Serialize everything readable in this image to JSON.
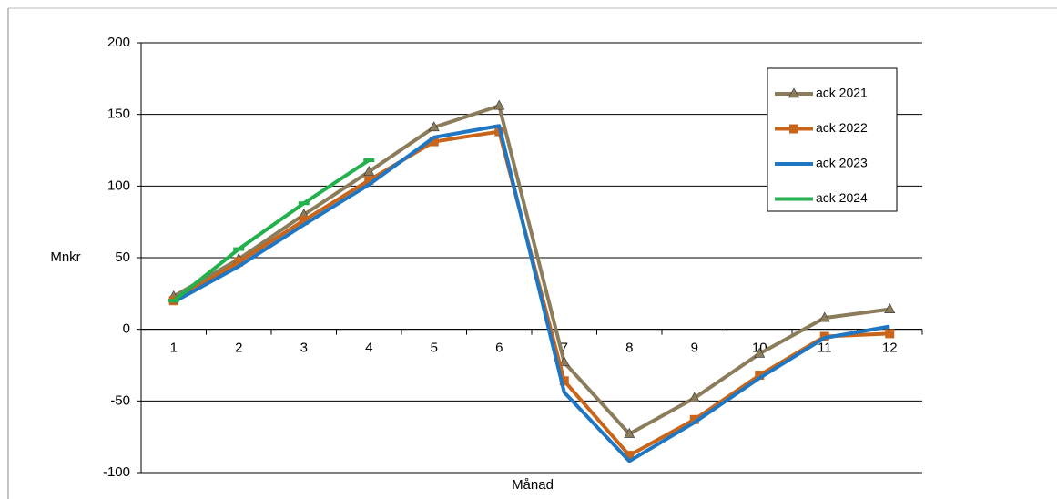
{
  "chart_data": {
    "type": "line",
    "x_label": "Månad",
    "y_label": "Mnkr",
    "categories": [
      "1",
      "2",
      "3",
      "4",
      "5",
      "6",
      "7",
      "8",
      "9",
      "10",
      "11",
      "12"
    ],
    "series": [
      {
        "name": "ack 2021",
        "color": "#8b7d5b",
        "marker": "triangle",
        "values": [
          23,
          49,
          80,
          110,
          141,
          156,
          -23,
          -73,
          -48,
          -17,
          8,
          14
        ]
      },
      {
        "name": "ack 2022",
        "color": "#c8651b",
        "marker": "square",
        "values": [
          20,
          47,
          76,
          104,
          131,
          138,
          -36,
          -88,
          -63,
          -32,
          -5,
          -3
        ]
      },
      {
        "name": "ack 2023",
        "color": "#1f77c4",
        "marker": "none",
        "values": [
          19,
          44,
          73,
          101,
          134,
          142,
          -44,
          -92,
          -65,
          -34,
          -6,
          2
        ]
      },
      {
        "name": "ack 2024",
        "color": "#22b14c",
        "marker": "dash",
        "values": [
          20,
          56,
          88,
          118,
          null,
          null,
          null,
          null,
          null,
          null,
          null,
          null
        ]
      }
    ],
    "ylim": [
      -100,
      200
    ],
    "yticks": [
      -100,
      -50,
      0,
      50,
      100,
      150,
      200
    ],
    "grid": true
  }
}
